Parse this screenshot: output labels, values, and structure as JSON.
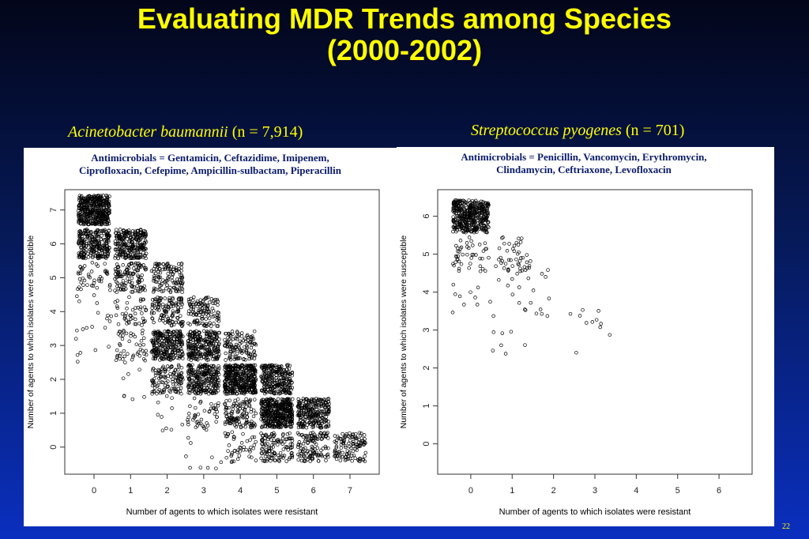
{
  "slide": {
    "title_line1": "Evaluating MDR Trends among Species",
    "title_line2": "(2000-2002)",
    "page_number": "22"
  },
  "panels": [
    {
      "species": "Acinetobacter baumannii",
      "count": "(n = 7,914)",
      "antimicrobials_line1": "Antimicrobials = Gentamicin, Ceftazidime, Imipenem,",
      "antimicrobials_line2": "Ciprofloxacin, Cefepime, Ampicillin-sulbactam, Piperacillin"
    },
    {
      "species": "Streptococcus pyogenes",
      "count": "(n = 701)",
      "antimicrobials_line1": "Antimicrobials = Penicillin, Vancomycin, Erythromycin,",
      "antimicrobials_line2": "Clindamycin, Ceftriaxone, Levofloxacin"
    }
  ],
  "chart_data": [
    {
      "type": "scatter",
      "xlabel": "Number of agents to which isolates were resistant",
      "ylabel": "Number of agents to which isolates were susceptible",
      "x_ticks": [
        "0",
        "1",
        "2",
        "3",
        "4",
        "5",
        "6",
        "7"
      ],
      "y_ticks": [
        "0",
        "1",
        "2",
        "3",
        "4",
        "5",
        "6",
        "7"
      ],
      "xlim": [
        -0.8,
        7.8
      ],
      "ylim": [
        -0.8,
        7.6
      ],
      "note": "jittered points; density per (resistant, susceptible) cell",
      "cells": [
        {
          "x": 0,
          "y": 7,
          "density": "very-high"
        },
        {
          "x": 0,
          "y": 6,
          "density": "high"
        },
        {
          "x": 1,
          "y": 6,
          "density": "high"
        },
        {
          "x": 0,
          "y": 5,
          "density": "low"
        },
        {
          "x": 1,
          "y": 5,
          "density": "medium"
        },
        {
          "x": 2,
          "y": 5,
          "density": "medium"
        },
        {
          "x": 0,
          "y": 4,
          "density": "sparse"
        },
        {
          "x": 1,
          "y": 4,
          "density": "low"
        },
        {
          "x": 2,
          "y": 4,
          "density": "medium"
        },
        {
          "x": 3,
          "y": 4,
          "density": "medium"
        },
        {
          "x": 0,
          "y": 3,
          "density": "sparse"
        },
        {
          "x": 1,
          "y": 3,
          "density": "low"
        },
        {
          "x": 2,
          "y": 3,
          "density": "high"
        },
        {
          "x": 3,
          "y": 3,
          "density": "high"
        },
        {
          "x": 4,
          "y": 3,
          "density": "medium"
        },
        {
          "x": 1,
          "y": 2,
          "density": "sparse"
        },
        {
          "x": 2,
          "y": 2,
          "density": "medium"
        },
        {
          "x": 3,
          "y": 2,
          "density": "high"
        },
        {
          "x": 4,
          "y": 2,
          "density": "very-high"
        },
        {
          "x": 5,
          "y": 2,
          "density": "high"
        },
        {
          "x": 2,
          "y": 1,
          "density": "sparse"
        },
        {
          "x": 3,
          "y": 1,
          "density": "low"
        },
        {
          "x": 4,
          "y": 1,
          "density": "medium"
        },
        {
          "x": 5,
          "y": 1,
          "density": "very-high"
        },
        {
          "x": 6,
          "y": 1,
          "density": "high"
        },
        {
          "x": 3,
          "y": 0,
          "density": "sparse"
        },
        {
          "x": 4,
          "y": 0,
          "density": "low"
        },
        {
          "x": 5,
          "y": 0,
          "density": "medium"
        },
        {
          "x": 6,
          "y": 0,
          "density": "medium"
        },
        {
          "x": 7,
          "y": 0,
          "density": "medium"
        }
      ]
    },
    {
      "type": "scatter",
      "xlabel": "Number of agents to which isolates were resistant",
      "ylabel": "Number of agents to which isolates were susceptible",
      "x_ticks": [
        "0",
        "1",
        "2",
        "3",
        "4",
        "5",
        "6"
      ],
      "y_ticks": [
        "0",
        "1",
        "2",
        "3",
        "4",
        "5",
        "6"
      ],
      "xlim": [
        -0.8,
        6.8
      ],
      "ylim": [
        -0.8,
        6.7
      ],
      "note": "jittered points; density per (resistant, susceptible) cell",
      "cells": [
        {
          "x": 0,
          "y": 6,
          "density": "very-high"
        },
        {
          "x": 0,
          "y": 5,
          "density": "low"
        },
        {
          "x": 1,
          "y": 5,
          "density": "low"
        },
        {
          "x": 0,
          "y": 4,
          "density": "sparse"
        },
        {
          "x": 1,
          "y": 4,
          "density": "sparse"
        },
        {
          "x": 2,
          "y": 4,
          "density": "sparse"
        },
        {
          "x": 1,
          "y": 3,
          "density": "sparse"
        },
        {
          "x": 3,
          "y": 3,
          "density": "sparse"
        }
      ]
    }
  ]
}
